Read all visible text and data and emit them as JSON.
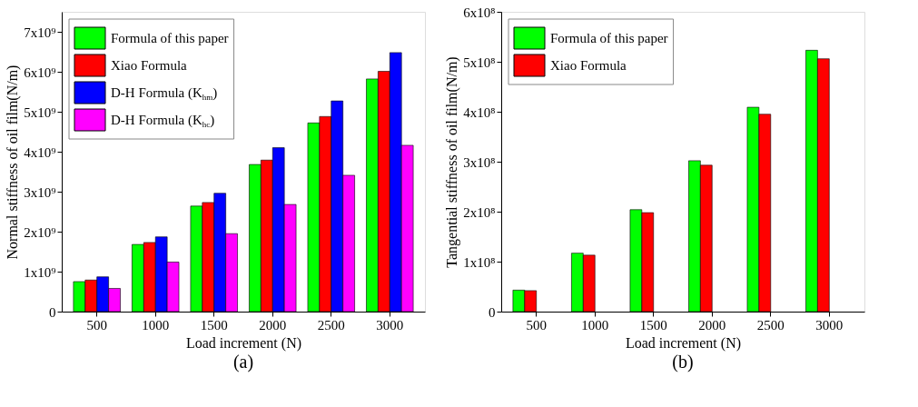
{
  "chart_data": [
    {
      "type": "bar",
      "xlabel": "Load increment (N)",
      "ylabel": "Normal stiffness of oil film(N/m)",
      "categories": [
        "500",
        "1000",
        "1500",
        "2000",
        "2500",
        "3000"
      ],
      "series": [
        {
          "name": "Formula of this paper",
          "color": "#00ff00",
          "values": [
            750000000,
            1680000000,
            2640000000,
            3680000000,
            4720000000,
            5820000000
          ]
        },
        {
          "name": "Xiao Formula",
          "color": "#ff0000",
          "values": [
            790000000,
            1730000000,
            2730000000,
            3790000000,
            4880000000,
            6010000000
          ]
        },
        {
          "name": "D-H Formula (K$_{hm}$)",
          "color": "#0000ff",
          "values": [
            870000000,
            1870000000,
            2960000000,
            4100000000,
            5270000000,
            6480000000
          ]
        },
        {
          "name": "D-H Formula (K$_{hc}$)",
          "color": "#ff00ff",
          "values": [
            580000000,
            1240000000,
            1950000000,
            2680000000,
            3410000000,
            4160000000
          ]
        }
      ],
      "ylim": [
        0,
        7500000000
      ],
      "yticks": [
        0,
        {
          "value": 1000000000,
          "label": "1x10⁹"
        },
        {
          "value": 2000000000,
          "label": "2x10⁹"
        },
        {
          "value": 3000000000,
          "label": "3x10⁹"
        },
        {
          "value": 4000000000,
          "label": "4x10⁹"
        },
        {
          "value": 5000000000,
          "label": "5x10⁹"
        },
        {
          "value": 6000000000,
          "label": "6x10⁹"
        },
        {
          "value": 7000000000,
          "label": "7x10⁹"
        }
      ],
      "legend": "top left",
      "grid": false,
      "annotations": [
        "(a)"
      ]
    },
    {
      "type": "bar",
      "xlabel": "Load increment (N)",
      "ylabel": "Tangential stiffness of oil film(N/m)",
      "categories": [
        "500",
        "1000",
        "1500",
        "2000",
        "2500",
        "3000"
      ],
      "series": [
        {
          "name": "Formula of this paper",
          "color": "#00ff00",
          "values": [
            43000000,
            117000000,
            204000000,
            302000000,
            409000000,
            523000000
          ]
        },
        {
          "name": "Xiao Formula",
          "color": "#ff0000",
          "values": [
            42000000,
            113000000,
            198000000,
            293000000,
            395000000,
            506000000
          ]
        }
      ],
      "ylim": [
        0,
        600000000
      ],
      "yticks": [
        0,
        {
          "value": 100000000,
          "label": "1x10⁸"
        },
        {
          "value": 200000000,
          "label": "2x10⁸"
        },
        {
          "value": 300000000,
          "label": "3x10⁸"
        },
        {
          "value": 400000000,
          "label": "4x10⁸"
        },
        {
          "value": 500000000,
          "label": "5x10⁸"
        },
        {
          "value": 600000000,
          "label": "6x10⁸"
        }
      ],
      "legend": "top left",
      "grid": false,
      "annotations": [
        "(b)"
      ]
    }
  ]
}
